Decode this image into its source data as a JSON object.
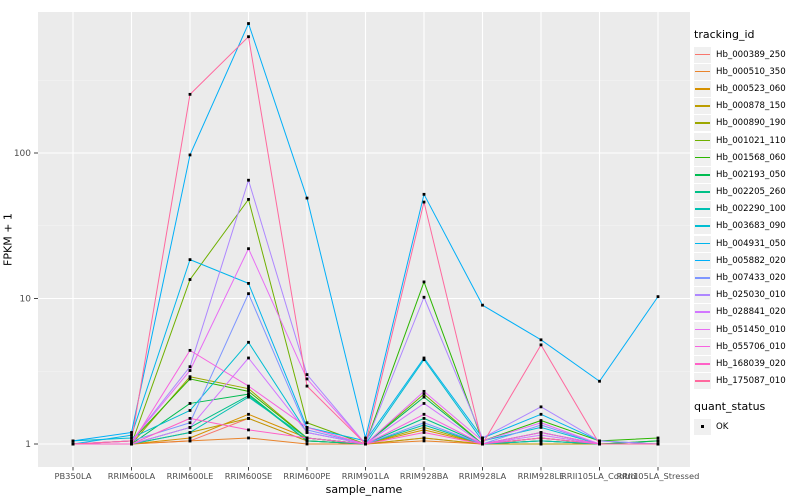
{
  "figure": {
    "background": "#FFFFFF",
    "panel_bg": "#EBEBEB",
    "grid_major_color": "#FFFFFF",
    "grid_minor_color": "#FFFFFF",
    "tick_color": "#333333",
    "tick_label_color": "#4D4D4D",
    "marker_color": "#000000",
    "legend_key_bg": "#F0F0F0"
  },
  "chart_data": {
    "type": "line",
    "title": "",
    "xlabel": "sample_name",
    "ylabel": "FPKM + 1",
    "y_scale": "log10",
    "y_ticks": [
      1,
      10,
      100
    ],
    "y_minor_gridlines": [
      3.162,
      31.62,
      316.2
    ],
    "ylim": [
      0.68,
      970
    ],
    "grid": true,
    "legend_position": "right",
    "categories": [
      "PB350LA",
      "RRIM600LA",
      "RRIM600LE",
      "RRIM600SE",
      "RRIM600PE",
      "RRIM901LA",
      "RRIM928BA",
      "RRIM928LA",
      "RRIM928LE",
      "RRII105LA_Control",
      "RRII105LA_Stressed"
    ],
    "series": [
      {
        "name": "Hb_000389_250",
        "color": "#F8766D",
        "values": [
          1.0,
          1.0,
          1.05,
          1.5,
          1.05,
          1.0,
          1.1,
          1.0,
          1.05,
          1.0,
          1.0
        ]
      },
      {
        "name": "Hb_000510_350",
        "color": "#E9842C",
        "values": [
          1.0,
          1.0,
          1.05,
          1.1,
          1.0,
          1.0,
          1.05,
          1.0,
          1.0,
          1.0,
          1.0
        ]
      },
      {
        "name": "Hb_000523_060",
        "color": "#D69100",
        "values": [
          1.0,
          1.0,
          1.1,
          1.6,
          1.1,
          1.0,
          1.25,
          1.0,
          1.1,
          1.0,
          1.0
        ]
      },
      {
        "name": "Hb_000878_150",
        "color": "#BC9D00",
        "values": [
          1.0,
          1.0,
          1.2,
          1.5,
          1.05,
          1.0,
          1.1,
          1.0,
          1.0,
          1.0,
          1.0
        ]
      },
      {
        "name": "Hb_000890_190",
        "color": "#9CA700",
        "values": [
          1.0,
          1.0,
          2.9,
          2.4,
          1.1,
          1.0,
          1.3,
          1.0,
          1.05,
          1.0,
          1.0
        ]
      },
      {
        "name": "Hb_001021_110",
        "color": "#6FB000",
        "values": [
          1.0,
          1.0,
          13.5,
          48,
          1.4,
          1.0,
          2.2,
          1.0,
          1.1,
          1.0,
          1.05
        ]
      },
      {
        "name": "Hb_001568_060",
        "color": "#2BB600",
        "values": [
          1.0,
          1.05,
          2.8,
          2.3,
          1.1,
          1.0,
          13.0,
          1.05,
          1.45,
          1.05,
          1.1
        ]
      },
      {
        "name": "Hb_002193_050",
        "color": "#00BC51",
        "values": [
          1.0,
          1.0,
          1.9,
          2.2,
          1.05,
          1.0,
          2.1,
          1.0,
          1.2,
          1.0,
          1.05
        ]
      },
      {
        "name": "Hb_002205_260",
        "color": "#00C087",
        "values": [
          1.0,
          1.0,
          1.3,
          2.15,
          1.05,
          1.0,
          1.5,
          1.0,
          1.05,
          1.0,
          1.0
        ]
      },
      {
        "name": "Hb_002290_100",
        "color": "#00C0B2",
        "values": [
          1.0,
          1.0,
          1.2,
          2.1,
          1.1,
          1.0,
          1.35,
          1.0,
          1.05,
          1.0,
          1.0
        ]
      },
      {
        "name": "Hb_003683_090",
        "color": "#00BDD2",
        "values": [
          1.05,
          1.1,
          1.7,
          5.0,
          1.2,
          1.0,
          3.8,
          1.05,
          1.3,
          1.0,
          1.0
        ]
      },
      {
        "name": "Hb_004931_050",
        "color": "#00B5EC",
        "values": [
          1.0,
          1.15,
          18.5,
          12.7,
          1.3,
          1.05,
          3.9,
          1.1,
          1.6,
          1.05,
          1.0
        ]
      },
      {
        "name": "Hb_005882_020",
        "color": "#00AFF8",
        "values": [
          1.05,
          1.2,
          97,
          776,
          49,
          1.1,
          52,
          9.0,
          5.2,
          2.7,
          10.3
        ]
      },
      {
        "name": "Hb_007433_020",
        "color": "#7E96FF",
        "values": [
          1.0,
          1.05,
          1.4,
          10.8,
          1.25,
          1.0,
          1.4,
          1.0,
          1.35,
          1.0,
          1.0
        ]
      },
      {
        "name": "Hb_025030_010",
        "color": "#AE87FF",
        "values": [
          1.0,
          1.05,
          3.4,
          65,
          3.0,
          1.0,
          10.2,
          1.1,
          1.8,
          1.05,
          1.0
        ]
      },
      {
        "name": "Hb_028841_020",
        "color": "#D277FF",
        "values": [
          1.0,
          1.0,
          1.3,
          3.9,
          1.2,
          1.0,
          1.9,
          1.0,
          1.15,
          1.0,
          1.0
        ]
      },
      {
        "name": "Hb_051450_010",
        "color": "#E86DF4",
        "values": [
          1.0,
          1.05,
          3.2,
          22,
          2.8,
          1.0,
          2.3,
          1.05,
          1.4,
          1.0,
          1.0
        ]
      },
      {
        "name": "Hb_055706_010",
        "color": "#F763E0",
        "values": [
          1.0,
          1.0,
          4.4,
          2.5,
          1.3,
          1.0,
          1.6,
          1.0,
          1.2,
          1.0,
          1.0
        ]
      },
      {
        "name": "Hb_168039_020",
        "color": "#FF61C7",
        "values": [
          1.0,
          1.0,
          1.5,
          1.25,
          1.1,
          1.0,
          1.2,
          1.0,
          1.1,
          1.0,
          1.0
        ]
      },
      {
        "name": "Hb_175087_010",
        "color": "#FF689E",
        "values": [
          1.0,
          1.05,
          253,
          630,
          2.5,
          1.0,
          46,
          1.0,
          4.8,
          1.0,
          1.0
        ]
      }
    ],
    "legend": {
      "tracking_title": "tracking_id",
      "quant_title": "quant_status",
      "quant_label": "OK"
    },
    "points": {
      "meaning": "quant_status",
      "label": "OK",
      "color": "#000000"
    }
  }
}
